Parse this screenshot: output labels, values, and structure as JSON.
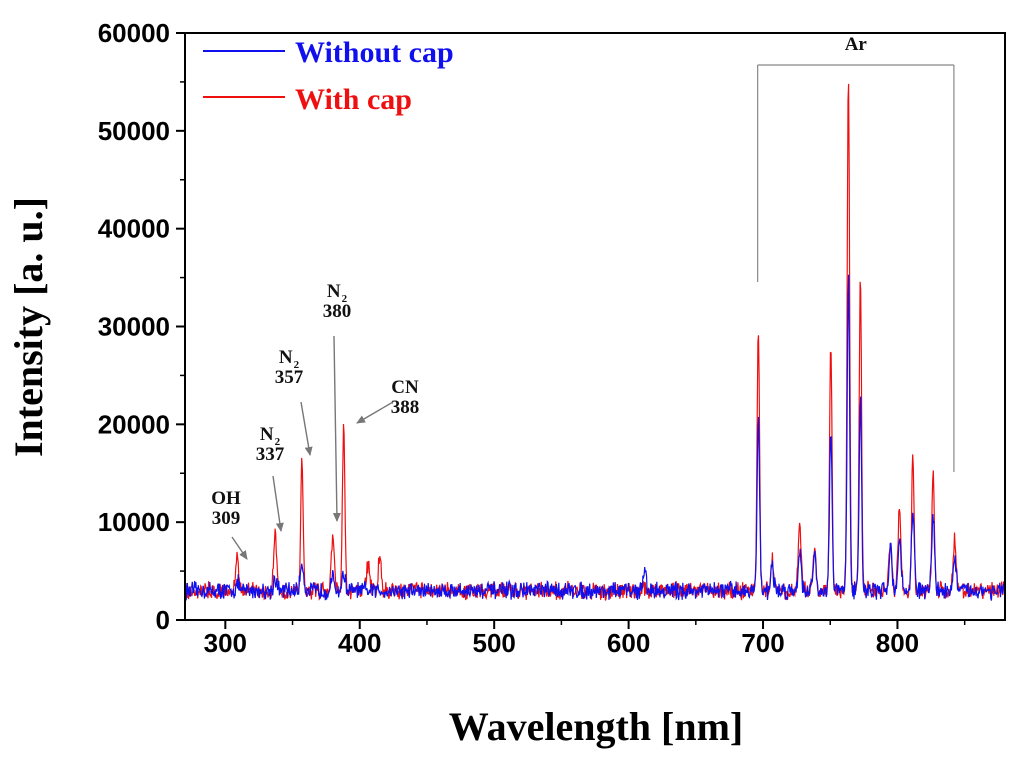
{
  "chart_data": {
    "type": "line",
    "title": "",
    "xlabel": "Wavelength [nm]",
    "ylabel": "Intensity [a. u.]",
    "xlim": [
      270,
      880
    ],
    "ylim": [
      0,
      60000
    ],
    "xticks": [
      "300",
      "400",
      "500",
      "600",
      "700",
      "800"
    ],
    "yticks": [
      "0",
      "10000",
      "20000",
      "30000",
      "40000",
      "50000",
      "60000"
    ],
    "baseline": 3000,
    "series": [
      {
        "name": "Without cap",
        "color": "#1010ee",
        "peaks": [
          {
            "x": 309,
            "y": 3800
          },
          {
            "x": 337,
            "y": 4300
          },
          {
            "x": 357,
            "y": 6000
          },
          {
            "x": 380,
            "y": 4300
          },
          {
            "x": 388,
            "y": 4800
          },
          {
            "x": 612,
            "y": 5000
          },
          {
            "x": 696.5,
            "y": 21000
          },
          {
            "x": 706.7,
            "y": 5500
          },
          {
            "x": 727.3,
            "y": 7300
          },
          {
            "x": 738.4,
            "y": 6800
          },
          {
            "x": 750.4,
            "y": 19500
          },
          {
            "x": 763.5,
            "y": 35500
          },
          {
            "x": 772.4,
            "y": 23000
          },
          {
            "x": 794.8,
            "y": 7500
          },
          {
            "x": 801.5,
            "y": 8300
          },
          {
            "x": 811.5,
            "y": 11000
          },
          {
            "x": 826.5,
            "y": 10500
          },
          {
            "x": 842.5,
            "y": 6300
          }
        ]
      },
      {
        "name": "With cap",
        "color": "#ee1010",
        "peaks": [
          {
            "x": 309,
            "y": 6500
          },
          {
            "x": 337,
            "y": 9000
          },
          {
            "x": 357,
            "y": 16000
          },
          {
            "x": 380,
            "y": 8500
          },
          {
            "x": 388,
            "y": 20000
          },
          {
            "x": 406,
            "y": 5800
          },
          {
            "x": 415,
            "y": 6700
          },
          {
            "x": 696.5,
            "y": 30000
          },
          {
            "x": 706.7,
            "y": 6300
          },
          {
            "x": 727.3,
            "y": 9500
          },
          {
            "x": 738.4,
            "y": 7300
          },
          {
            "x": 750.4,
            "y": 28000
          },
          {
            "x": 763.5,
            "y": 56000
          },
          {
            "x": 772.4,
            "y": 35000
          },
          {
            "x": 794.8,
            "y": 8300
          },
          {
            "x": 801.5,
            "y": 11500
          },
          {
            "x": 811.5,
            "y": 17000
          },
          {
            "x": 826.5,
            "y": 15300
          },
          {
            "x": 842.5,
            "y": 8500
          }
        ]
      }
    ],
    "annotations": [
      {
        "species": "OH",
        "sub": "",
        "wavelength": "309",
        "x": 309,
        "y": 6500
      },
      {
        "species": "N",
        "sub": "2",
        "wavelength": "337",
        "x": 337,
        "y": 9000
      },
      {
        "species": "N",
        "sub": "2",
        "wavelength": "357",
        "x": 357,
        "y": 16000
      },
      {
        "species": "N",
        "sub": "2",
        "wavelength": "380",
        "x": 380,
        "y": 8500
      },
      {
        "species": "CN",
        "sub": "",
        "wavelength": "388",
        "x": 388,
        "y": 20000
      }
    ],
    "bracket": {
      "label": "Ar",
      "x_start": 696,
      "x_end": 842
    }
  },
  "legend": [
    {
      "label": "Without cap",
      "color": "#1010ee"
    },
    {
      "label": "With cap",
      "color": "#ee1010"
    }
  ]
}
